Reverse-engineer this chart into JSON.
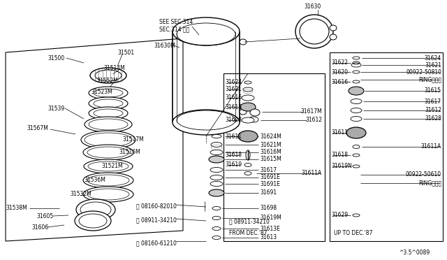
{
  "bg_color": "#ffffff",
  "line_color": "#000000",
  "fig_width": 6.4,
  "fig_height": 3.72,
  "dpi": 100,
  "part_number_label": "^3.5^0089",
  "see_sec_label": "SEE SEC.314",
  "see_sec_label2": "SEC.314 参照",
  "part_31630": "31630",
  "part_31630M": "31630M",
  "from_dec87": "FROM DEC.'87",
  "up_to_dec87": "UP TO DEC.'87"
}
